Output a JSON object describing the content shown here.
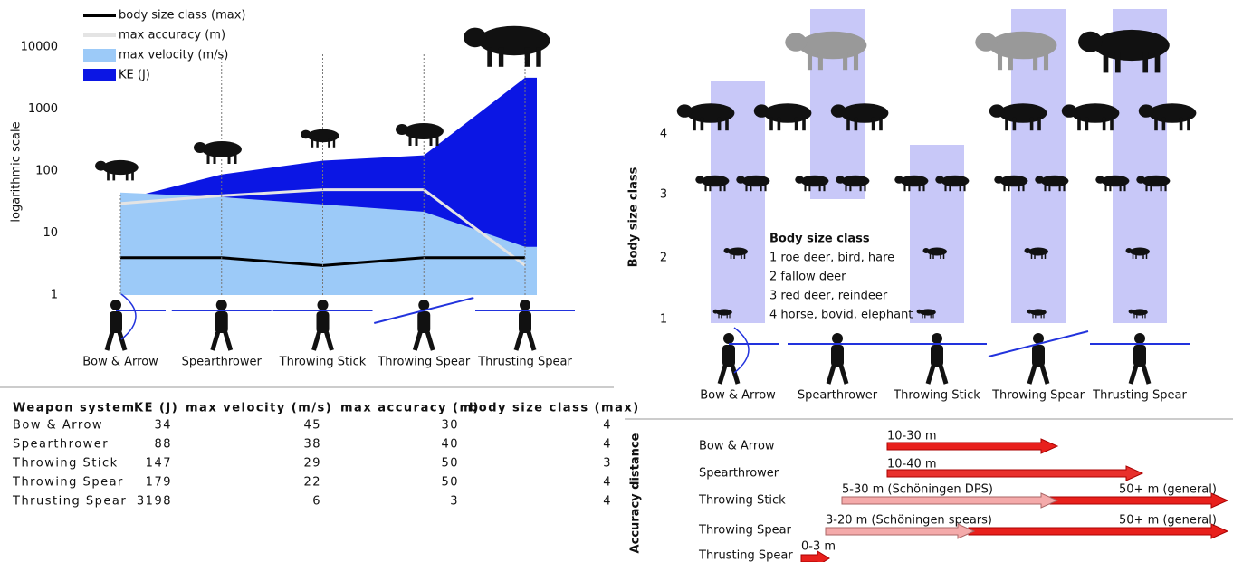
{
  "chart_data": {
    "type": "area",
    "ylabel": "logarithmic scale",
    "log_scale": true,
    "categories": [
      "Bow & Arrow",
      "Spearthrower",
      "Throwing Stick",
      "Throwing Spear",
      "Thrusting Spear"
    ],
    "series": [
      {
        "name": "body size class (max)",
        "color": "#000000",
        "type": "line",
        "values": [
          4,
          4,
          3,
          4,
          4
        ]
      },
      {
        "name": "max accuracy (m)",
        "color": "#e4e4e4",
        "type": "line",
        "values": [
          30,
          40,
          50,
          50,
          3
        ]
      },
      {
        "name": "max velocity (m/s)",
        "color": "#9ccaf8",
        "type": "area",
        "values": [
          45,
          38,
          29,
          22,
          6
        ]
      },
      {
        "name": "KE (J)",
        "color": "#0b16e4",
        "type": "area",
        "values": [
          34,
          88,
          147,
          179,
          3198
        ]
      }
    ],
    "ylim": [
      1,
      10000
    ],
    "yticks": [
      1,
      10,
      100,
      1000,
      10000
    ]
  },
  "table": {
    "header": [
      "Weapon system",
      "KE (J)",
      "max velocity (m/s)",
      "max accuracy (m)",
      "body size class (max)"
    ],
    "rows": [
      [
        "Bow & Arrow",
        34,
        45,
        30,
        4
      ],
      [
        "Spearthrower",
        88,
        38,
        40,
        4
      ],
      [
        "Throwing Stick",
        147,
        29,
        50,
        3
      ],
      [
        "Throwing Spear",
        179,
        22,
        50,
        4
      ],
      [
        "Thrusting Spear",
        3198,
        6,
        3,
        4
      ]
    ]
  },
  "diagram": {
    "axis_label": "Body size class",
    "classes": [
      "1",
      "2",
      "3",
      "4"
    ],
    "legend_title": "Body size class",
    "legend": [
      "1 roe deer, bird, hare",
      "2 fallow deer",
      "3 red deer, reindeer",
      "4 horse, bovid, elephant"
    ],
    "weapons": [
      "Bow & Arrow",
      "Spearthrower",
      "Throwing Stick",
      "Throwing Spear",
      "Thrusting Spear"
    ]
  },
  "accuracy": {
    "axis_label": "Accuracy distance",
    "rows": [
      {
        "weapon": "Bow & Arrow",
        "labels": [
          "10-30 m"
        ]
      },
      {
        "weapon": "Spearthrower",
        "labels": [
          "10-40 m"
        ]
      },
      {
        "weapon": "Throwing Stick",
        "labels": [
          "5-30 m (Schöningen DPS)",
          "50+ m (general)"
        ]
      },
      {
        "weapon": "Throwing Spear",
        "labels": [
          "3-20 m (Schöningen spears)",
          "50+ m (general)"
        ]
      },
      {
        "weapon": "Thrusting Spear",
        "labels": [
          "0-3 m"
        ]
      }
    ]
  }
}
